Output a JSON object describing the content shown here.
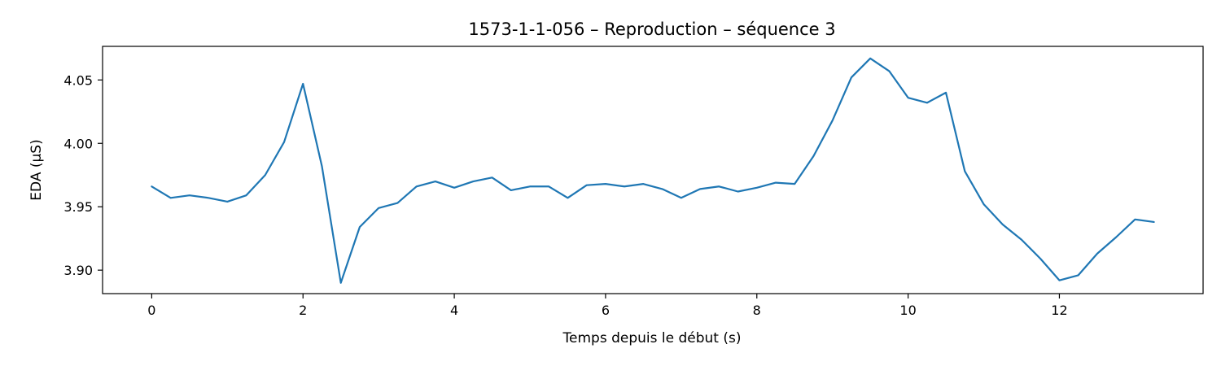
{
  "chart_data": {
    "type": "line",
    "title": "1573-1-1-056 – Reproduction – séquence 3",
    "xlabel": "Temps depuis le début (s)",
    "ylabel": "EDA (µS)",
    "xlim": [
      -0.65,
      13.9
    ],
    "ylim": [
      3.8815,
      4.0765
    ],
    "xticks": [
      0,
      2,
      4,
      6,
      8,
      10,
      12
    ],
    "yticks": [
      3.9,
      3.95,
      4.0,
      4.05
    ],
    "ytick_labels": [
      "3.90",
      "3.95",
      "4.00",
      "4.05"
    ],
    "grid": false,
    "line_color": "#1f77b4",
    "series": [
      {
        "x": [
          0,
          0.25,
          0.5,
          0.75,
          1.0,
          1.25,
          1.5,
          1.75,
          2.0,
          2.25,
          2.5,
          2.75,
          3.0,
          3.25,
          3.5,
          3.75,
          4.0,
          4.25,
          4.5,
          4.75,
          5.0,
          5.25,
          5.5,
          5.75,
          6.0,
          6.25,
          6.5,
          6.75,
          7.0,
          7.25,
          7.5,
          7.75,
          8.0,
          8.25,
          8.5,
          8.75,
          9.0,
          9.25,
          9.5,
          9.75,
          10.0,
          10.25,
          10.5,
          10.75,
          11.0,
          11.25,
          11.5,
          11.75,
          12.0,
          12.25,
          12.5,
          12.75,
          13.0,
          13.25
        ],
        "values": [
          3.966,
          3.957,
          3.959,
          3.957,
          3.954,
          3.959,
          3.975,
          4.001,
          4.047,
          3.982,
          3.89,
          3.934,
          3.949,
          3.953,
          3.966,
          3.97,
          3.965,
          3.97,
          3.973,
          3.963,
          3.966,
          3.966,
          3.957,
          3.967,
          3.968,
          3.966,
          3.968,
          3.964,
          3.957,
          3.964,
          3.966,
          3.962,
          3.965,
          3.969,
          3.968,
          3.99,
          4.018,
          4.052,
          4.067,
          4.057,
          4.036,
          4.032,
          4.04,
          3.978,
          3.952,
          3.936,
          3.924,
          3.909,
          3.892,
          3.896,
          3.913,
          3.926,
          3.94,
          3.938
        ]
      }
    ]
  }
}
